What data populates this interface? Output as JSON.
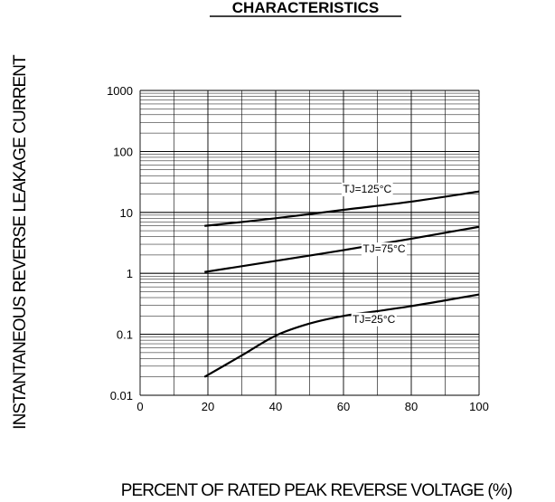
{
  "chart_data": {
    "type": "line",
    "title": "CHARACTERISTICS",
    "xlabel": "PERCENT OF RATED PEAK REVERSE VOLTAGE (%)",
    "ylabel": "INSTANTANEOUS REVERSE LEAKAGE CURRENT",
    "xlim": [
      0,
      100
    ],
    "ylim": [
      0.01,
      1000
    ],
    "yscale": "log",
    "grid": true,
    "x_ticks": [
      "0",
      "20",
      "40",
      "60",
      "80",
      "100"
    ],
    "y_ticks": [
      "0.01",
      "0.1",
      "1",
      "10",
      "100",
      "1000"
    ],
    "series": [
      {
        "name": "TJ=125°C",
        "x": [
          19,
          40,
          60,
          80,
          100
        ],
        "y": [
          6,
          8,
          11,
          15,
          22
        ]
      },
      {
        "name": "TJ=75°C",
        "x": [
          19,
          40,
          60,
          80,
          100
        ],
        "y": [
          1.05,
          1.6,
          2.4,
          3.7,
          5.8
        ]
      },
      {
        "name": "TJ=25°C",
        "x": [
          19,
          30,
          40,
          50,
          60,
          70,
          80,
          90,
          100
        ],
        "y": [
          0.02,
          0.045,
          0.095,
          0.15,
          0.2,
          0.24,
          0.29,
          0.36,
          0.45
        ]
      }
    ]
  }
}
